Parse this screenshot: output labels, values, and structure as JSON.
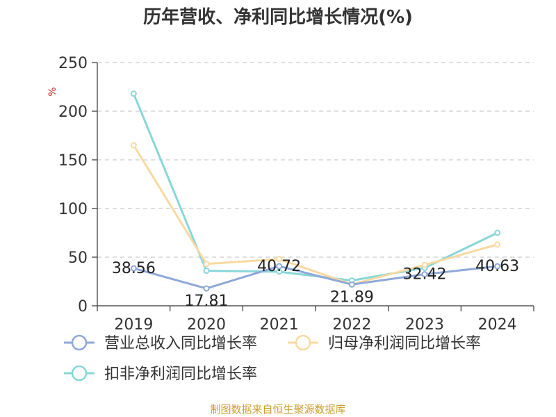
{
  "chart_data": {
    "type": "line",
    "title": "历年营收、净利同比增长情况(%)",
    "ylabel": "%",
    "xlabel": "",
    "categories": [
      "2019",
      "2020",
      "2021",
      "2022",
      "2023",
      "2024"
    ],
    "ylim": [
      0,
      250
    ],
    "yticks": [
      0,
      50,
      100,
      150,
      200,
      250
    ],
    "grid": true,
    "legend_position": "bottom",
    "series": [
      {
        "name": "营业总收入同比增长率",
        "values": [
          38.56,
          17.81,
          40.72,
          21.89,
          32.42,
          40.63
        ],
        "labels": [
          "38.56",
          "17.81",
          "40.72",
          "21.89",
          "32.42",
          "40.63"
        ],
        "color": "#8fa8d8"
      },
      {
        "name": "归母净利润同比增长率",
        "values": [
          165,
          43,
          48,
          22,
          42,
          63
        ],
        "color": "#f8d9a0"
      },
      {
        "name": "扣非净利润同比增长率",
        "values": [
          218,
          36,
          35,
          26,
          39,
          75
        ],
        "color": "#88d6d8"
      }
    ]
  },
  "source": "制图数据来自恒生聚源数据库"
}
